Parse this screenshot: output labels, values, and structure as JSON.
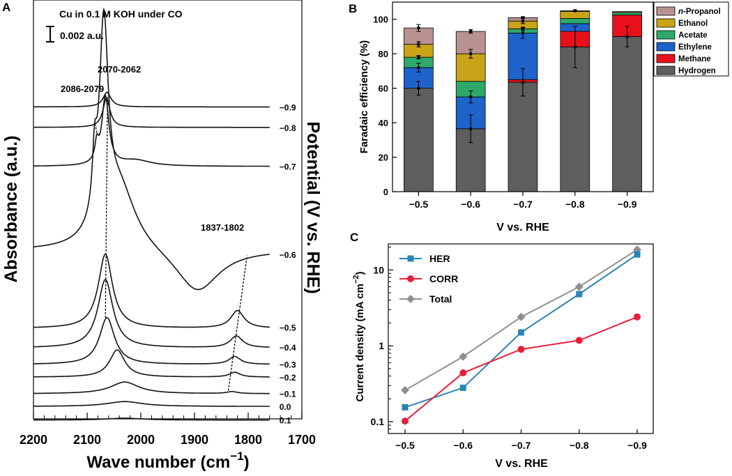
{
  "panels": {
    "a": {
      "letter": "A",
      "condition": "Cu in 0.1 M KOH under CO",
      "scale_label": "0.002 a.u.",
      "xlabel": "Wave number (cm",
      "xlabel_exp": "−1",
      "xlabel_close": ")",
      "ylabel": "Absorbance (a.u.)",
      "right_label": "Potential (V vs. RHE)",
      "peak_labels": [
        "2086-2079",
        "2070-2062",
        "1837-1802"
      ]
    },
    "b": {
      "letter": "B"
    },
    "c": {
      "letter": "C"
    }
  },
  "chart_data": [
    {
      "id": "ir-spectra",
      "type": "line",
      "title": "Cu in 0.1 M KOH under CO",
      "xlabel": "Wave number (cm−1)",
      "ylabel": "Absorbance (a.u.)",
      "y2label": "Potential (V vs. RHE)",
      "xlim": [
        2200,
        1700
      ],
      "xticks": [
        "2200",
        "2100",
        "2000",
        "1900",
        "1800",
        "1700"
      ],
      "series": [
        {
          "name": "0.1",
          "baseline": -0.0012,
          "features": [
            {
              "pos": 2030,
              "width": 40,
              "height": 0.0002
            }
          ]
        },
        {
          "name": "0.0",
          "baseline": 0.0002,
          "features": [
            {
              "pos": 2030,
              "width": 40,
              "height": 0.0005
            }
          ]
        },
        {
          "name": "−0.1",
          "baseline": 0.0015,
          "features": [
            {
              "pos": 2030,
              "width": 32,
              "height": 0.0012
            },
            {
              "pos": 1830,
              "width": 12,
              "height": 0.0002
            }
          ]
        },
        {
          "name": "−0.2",
          "baseline": 0.0032,
          "features": [
            {
              "pos": 2044,
              "width": 17,
              "height": 0.0028
            },
            {
              "pos": 1825,
              "width": 12,
              "height": 0.0005
            }
          ]
        },
        {
          "name": "−0.3",
          "baseline": 0.0045,
          "features": [
            {
              "pos": 2063,
              "width": 17,
              "height": 0.0048
            },
            {
              "pos": 1825,
              "width": 13,
              "height": 0.0008
            }
          ]
        },
        {
          "name": "−0.4",
          "baseline": 0.0062,
          "features": [
            {
              "pos": 2066,
              "width": 17,
              "height": 0.007
            },
            {
              "pos": 1822,
              "width": 14,
              "height": 0.0012
            }
          ]
        },
        {
          "name": "−0.5",
          "baseline": 0.0082,
          "features": [
            {
              "pos": 2066,
              "width": 16,
              "height": 0.0076
            },
            {
              "pos": 1820,
              "width": 15,
              "height": 0.0018
            }
          ]
        },
        {
          "name": "−0.6",
          "baseline": 0.0162,
          "features": [
            {
              "pos": 2069,
              "width": 10,
              "height": 0.0205
            },
            {
              "pos": 2086,
              "width": 5,
              "height": 0.0055
            },
            {
              "pos": 2040,
              "width": 38,
              "height": 0.0065
            },
            {
              "pos": 1895,
              "width": 50,
              "height": -0.0045
            }
          ]
        },
        {
          "name": "−0.7",
          "baseline": 0.0248,
          "features": [
            {
              "pos": 2066,
              "width": 8,
              "height": 0.007
            },
            {
              "pos": 2082,
              "width": 4,
              "height": 0.0018
            },
            {
              "pos": 2010,
              "width": 35,
              "height": 0.0006
            }
          ]
        },
        {
          "name": "−0.8",
          "baseline": 0.0288,
          "features": [
            {
              "pos": 2064,
              "width": 8,
              "height": 0.003
            }
          ]
        },
        {
          "name": "−0.9",
          "baseline": 0.0309,
          "features": [
            {
              "pos": 2063,
              "width": 9,
              "height": 0.0015
            }
          ]
        }
      ]
    },
    {
      "id": "faradaic-efficiency",
      "type": "bar",
      "stacked": true,
      "xlabel": "V vs. RHE",
      "ylabel": "Faradaic efficiency (%)",
      "ylim": [
        0,
        110
      ],
      "yticks": [
        "0",
        "20",
        "40",
        "60",
        "80",
        "100"
      ],
      "categories": [
        "−0.5",
        "−0.6",
        "−0.7",
        "−0.8",
        "−0.9"
      ],
      "series": [
        {
          "name": "Hydrogen",
          "color": "#5e5e5e",
          "values": [
            60,
            36.5,
            63.5,
            84,
            90
          ],
          "errors": [
            4,
            8,
            8,
            12,
            6
          ]
        },
        {
          "name": "Methane",
          "color": "#e8101b",
          "values": [
            0,
            0,
            1.5,
            9,
            12.5
          ],
          "errors": [
            0,
            0,
            0,
            0,
            0
          ]
        },
        {
          "name": "Ethylene",
          "color": "#1e63c9",
          "values": [
            12,
            18.5,
            27,
            4.5,
            0
          ],
          "errors": [
            2.5,
            3.5,
            3,
            0,
            0
          ]
        },
        {
          "name": "Acetate",
          "color": "#2ea96a",
          "values": [
            6,
            9,
            2.5,
            3,
            1.5
          ],
          "errors": [
            1,
            0,
            1,
            0,
            0
          ]
        },
        {
          "name": "Ethanol",
          "color": "#c9a318",
          "values": [
            7.5,
            16,
            4.5,
            4,
            0.5
          ],
          "errors": [
            1.5,
            2.5,
            1.5,
            0,
            0
          ]
        },
        {
          "name": "n-Propanol",
          "color": "#b89191",
          "values": [
            9.5,
            13,
            2,
            0.5,
            0
          ],
          "errors": [
            2,
            1,
            0.5,
            0.5,
            0
          ]
        }
      ],
      "legend_entries": [
        {
          "italic": "n",
          "rest": "-Propanol",
          "color": "#b89191"
        },
        {
          "italic": "",
          "rest": "Ethanol",
          "color": "#c9a318"
        },
        {
          "italic": "",
          "rest": "Acetate",
          "color": "#2ea96a"
        },
        {
          "italic": "",
          "rest": "Ethylene",
          "color": "#1e63c9"
        },
        {
          "italic": "",
          "rest": "Methane",
          "color": "#e8101b"
        },
        {
          "italic": "",
          "rest": "Hydrogen",
          "color": "#5e5e5e"
        }
      ],
      "legend_position": "right"
    },
    {
      "id": "current-density",
      "type": "line",
      "yscale": "log",
      "xlabel": "V vs. RHE",
      "ylabel": "Current density (mA cm",
      "ylabel_exp": "−2",
      "ylabel_close": ")",
      "ylim": [
        0.07,
        22
      ],
      "yticks": [
        "0.1",
        "1",
        "10"
      ],
      "x": [
        "−0.5",
        "−0.6",
        "−0.7",
        "−0.8",
        "−0.9"
      ],
      "series": [
        {
          "name": "HER",
          "color": "#2a84b5",
          "marker": "square",
          "values": [
            0.155,
            0.28,
            1.5,
            4.8,
            16
          ]
        },
        {
          "name": "CORR",
          "color": "#e8203a",
          "marker": "circle",
          "values": [
            0.102,
            0.44,
            0.9,
            1.18,
            2.4
          ]
        },
        {
          "name": "Total",
          "color": "#8f8f8f",
          "marker": "diamond",
          "values": [
            0.26,
            0.72,
            2.4,
            6.0,
            18.5
          ]
        }
      ],
      "legend_position": "top-left"
    }
  ]
}
